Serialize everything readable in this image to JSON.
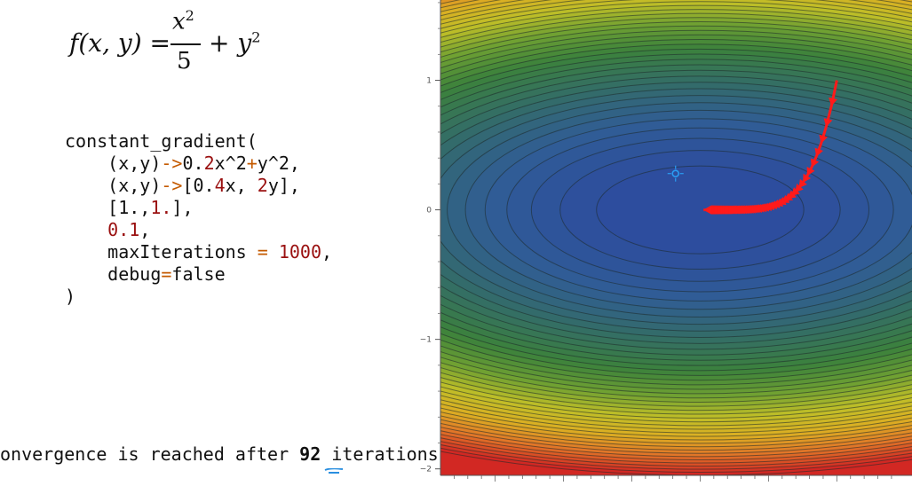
{
  "formula": {
    "lhs": "f(x, y) =",
    "numerator_var": "x",
    "numerator_exp": "2",
    "denominator": "5",
    "rest_var": "+ y",
    "rest_exp": "2"
  },
  "code": {
    "lines": [
      [
        {
          "t": "constant_gradient(",
          "c": "plain"
        }
      ],
      [
        {
          "t": "    (x,y)",
          "c": "plain"
        },
        {
          "t": "->",
          "c": "op"
        },
        {
          "t": "0.",
          "c": "plain"
        },
        {
          "t": "2",
          "c": "num"
        },
        {
          "t": "x^2",
          "c": "plain"
        },
        {
          "t": "+",
          "c": "op"
        },
        {
          "t": "y^2,",
          "c": "plain"
        }
      ],
      [
        {
          "t": "    (x,y)",
          "c": "plain"
        },
        {
          "t": "->",
          "c": "op"
        },
        {
          "t": "[0.",
          "c": "plain"
        },
        {
          "t": "4",
          "c": "num"
        },
        {
          "t": "x, ",
          "c": "plain"
        },
        {
          "t": "2",
          "c": "num"
        },
        {
          "t": "y],",
          "c": "plain"
        }
      ],
      [
        {
          "t": "    [1.,",
          "c": "plain"
        },
        {
          "t": "1.",
          "c": "num"
        },
        {
          "t": "],",
          "c": "plain"
        }
      ],
      [
        {
          "t": "    ",
          "c": "plain"
        },
        {
          "t": "0.1",
          "c": "num"
        },
        {
          "t": ",",
          "c": "plain"
        }
      ],
      [
        {
          "t": "    maxIterations ",
          "c": "plain"
        },
        {
          "t": "=",
          "c": "op"
        },
        {
          "t": " ",
          "c": "plain"
        },
        {
          "t": "1000",
          "c": "num"
        },
        {
          "t": ",",
          "c": "plain"
        }
      ],
      [
        {
          "t": "    debug",
          "c": "plain"
        },
        {
          "t": "=",
          "c": "op"
        },
        {
          "t": "false",
          "c": "plain"
        }
      ],
      [
        {
          "t": ")",
          "c": "plain"
        }
      ]
    ]
  },
  "status": {
    "prefix": "onvergence is reached after ",
    "iterations": "92",
    "suffix": " iterations."
  },
  "colors": {
    "path": "#ff1a1a",
    "marker": "#2a9df4",
    "annotation": "#2a8fe0"
  },
  "chart_data": {
    "type": "contour",
    "function": "x^2/5 + y^2",
    "xlim": [
      -1.9,
      1.55
    ],
    "ylim": [
      -2.05,
      1.62
    ],
    "y_ticks": [
      "1",
      "0",
      "−1",
      "−2"
    ],
    "start_point": [
      1.0,
      1.0
    ],
    "end_point": [
      0.0,
      0.0
    ],
    "iterations": 92,
    "step": 0.1,
    "marker_point": [
      -0.18,
      0.28
    ]
  }
}
